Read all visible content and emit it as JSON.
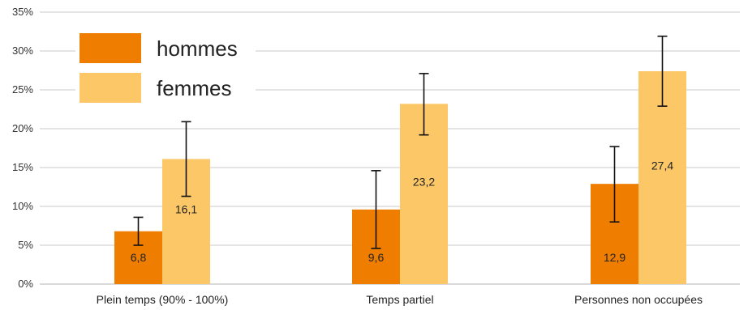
{
  "chart_data": {
    "type": "bar",
    "categories": [
      "Plein temps (90% - 100%)",
      "Temps partiel",
      "Personnes non occupées"
    ],
    "series": [
      {
        "name": "hommes",
        "color": "#ef7d00",
        "values": [
          6.8,
          9.6,
          12.9
        ],
        "labels": [
          "6,8",
          "9,6",
          "12,9"
        ],
        "error_low": [
          5.0,
          4.6,
          8.0
        ],
        "error_high": [
          8.6,
          14.6,
          17.7
        ]
      },
      {
        "name": "femmes",
        "color": "#fcc766",
        "values": [
          16.1,
          23.2,
          27.4
        ],
        "labels": [
          "16,1",
          "23,2",
          "27,4"
        ],
        "error_low": [
          11.3,
          19.2,
          22.9
        ],
        "error_high": [
          20.9,
          27.1,
          31.9
        ]
      }
    ],
    "ylim": [
      0,
      35
    ],
    "yticks": [
      "0%",
      "5%",
      "10%",
      "15%",
      "20%",
      "25%",
      "30%",
      "35%"
    ],
    "grid": true,
    "legend_position": "top-left",
    "xlabel": "",
    "ylabel": ""
  }
}
